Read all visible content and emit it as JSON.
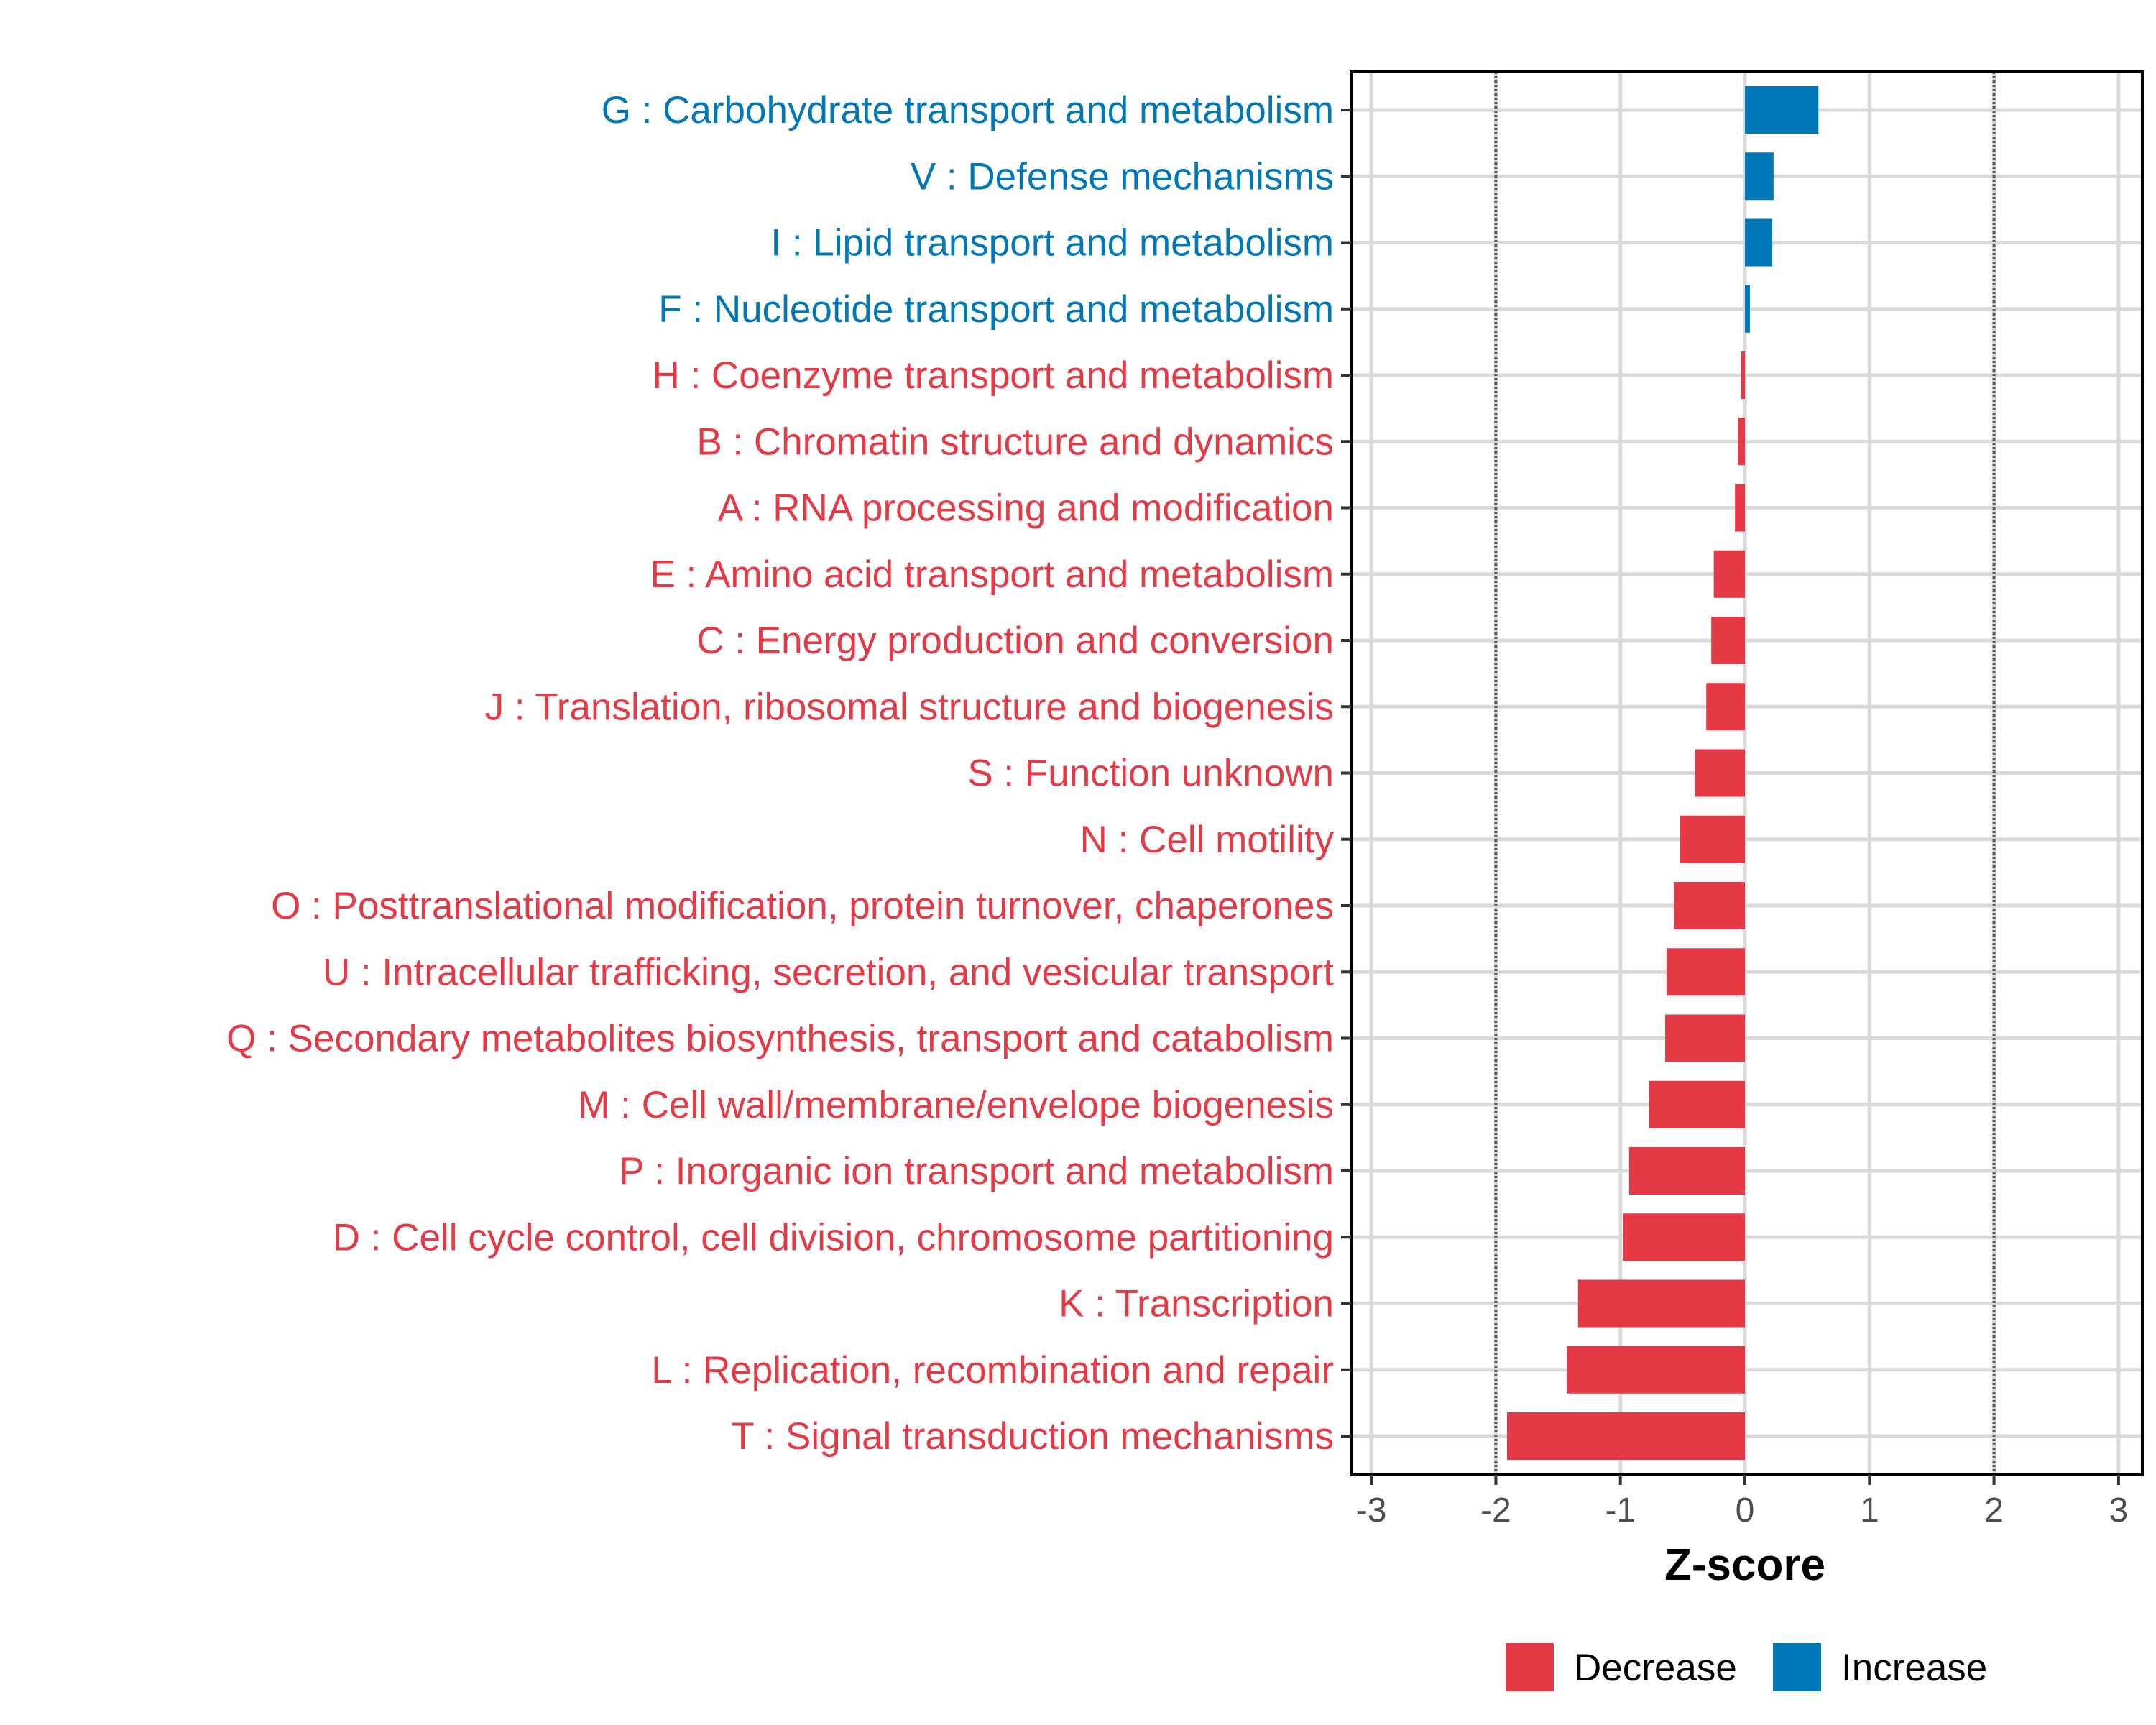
{
  "chart_data": {
    "type": "bar",
    "orientation": "horizontal",
    "title": "",
    "xlabel": "Z-score",
    "ylabel": "",
    "xlim": [
      -3.2,
      3.2
    ],
    "xticks": [
      -3,
      -2,
      -1,
      0,
      1,
      2,
      3
    ],
    "xtick_labels": [
      "-3",
      "-2",
      "-1",
      "0",
      "1",
      "2",
      "3"
    ],
    "reference_lines": [
      -2,
      2
    ],
    "grid": true,
    "legend": {
      "placement": "bottom",
      "entries": [
        {
          "label": "Decrease",
          "color": "#E63946"
        },
        {
          "label": "Increase",
          "color": "#0077B6"
        }
      ]
    },
    "categories": [
      "G : Carbohydrate transport and metabolism",
      "V : Defense mechanisms",
      "I : Lipid transport and metabolism",
      "F : Nucleotide transport and metabolism",
      "H : Coenzyme transport and metabolism",
      "B : Chromatin structure and dynamics",
      "A : RNA processing and modification",
      "E : Amino acid transport and metabolism",
      "C : Energy production and conversion",
      "J : Translation, ribosomal structure and biogenesis",
      "S : Function unknown",
      "N : Cell motility",
      "O : Posttranslational modification, protein turnover, chaperones",
      "U : Intracellular trafficking, secretion, and vesicular transport",
      "Q : Secondary metabolites biosynthesis, transport and catabolism",
      "M : Cell wall/membrane/envelope biogenesis",
      "P : Inorganic ion transport and metabolism",
      "D : Cell cycle control, cell division, chromosome partitioning",
      "K : Transcription",
      "L : Replication, recombination and repair",
      "T : Signal transduction mechanisms"
    ],
    "values": [
      0.59,
      0.23,
      0.22,
      0.04,
      -0.03,
      -0.055,
      -0.08,
      -0.25,
      -0.27,
      -0.31,
      -0.4,
      -0.52,
      -0.57,
      -0.63,
      -0.64,
      -0.77,
      -0.93,
      -0.98,
      -1.34,
      -1.43,
      -1.91
    ],
    "colors": {
      "Decrease": "#E63946",
      "Increase": "#0077B6"
    }
  }
}
